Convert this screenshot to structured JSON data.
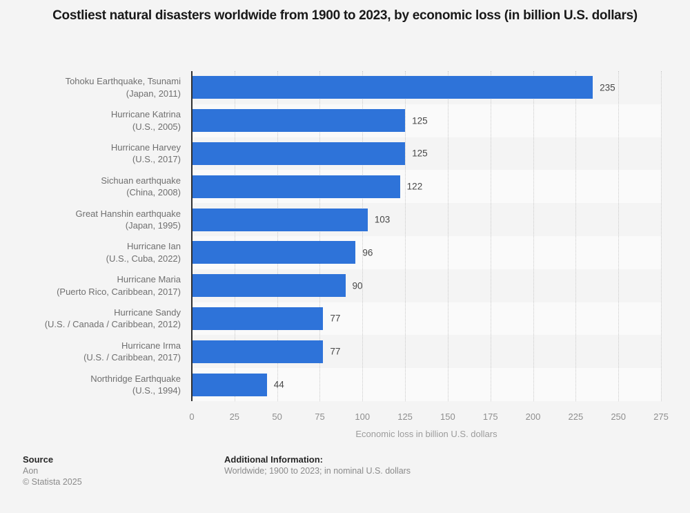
{
  "chart_data": {
    "type": "bar",
    "orientation": "horizontal",
    "title": "Costliest natural disasters worldwide from 1900 to 2023, by economic loss (in billion U.S. dollars)",
    "xlabel": "Economic loss in billion U.S. dollars",
    "ylabel": "",
    "xlim": [
      0,
      275
    ],
    "xticks": [
      0,
      25,
      50,
      75,
      100,
      125,
      150,
      175,
      200,
      225,
      250,
      275
    ],
    "grid": "vertical-dotted",
    "legend": "none",
    "bar_color": "#2e73d9",
    "row_stripe_color": "#fafafa",
    "background_color": "#f4f4f4",
    "rows": [
      {
        "label": "Tohoku Earthquake, Tsunami",
        "sublabel": "(Japan, 2011)",
        "value": 235
      },
      {
        "label": "Hurricane Katrina",
        "sublabel": "(U.S., 2005)",
        "value": 125
      },
      {
        "label": "Hurricane Harvey",
        "sublabel": "(U.S., 2017)",
        "value": 125
      },
      {
        "label": "Sichuan earthquake",
        "sublabel": "(China, 2008)",
        "value": 122
      },
      {
        "label": "Great Hanshin earthquake",
        "sublabel": "(Japan, 1995)",
        "value": 103
      },
      {
        "label": "Hurricane Ian",
        "sublabel": "(U.S., Cuba, 2022)",
        "value": 96
      },
      {
        "label": "Hurricane Maria",
        "sublabel": "(Puerto Rico, Caribbean, 2017)",
        "value": 90
      },
      {
        "label": "Hurricane Sandy",
        "sublabel": "(U.S. / Canada / Caribbean, 2012)",
        "value": 77
      },
      {
        "label": "Hurricane Irma",
        "sublabel": "(U.S. / Caribbean, 2017)",
        "value": 77
      },
      {
        "label": "Northridge Earthquake",
        "sublabel": "(U.S., 1994)",
        "value": 44
      }
    ]
  },
  "footer": {
    "source_heading": "Source",
    "source_name": "Aon",
    "copyright": "© Statista 2025",
    "additional_heading": "Additional Information:",
    "additional_text": "Worldwide; 1900 to 2023; in nominal U.S. dollars"
  }
}
